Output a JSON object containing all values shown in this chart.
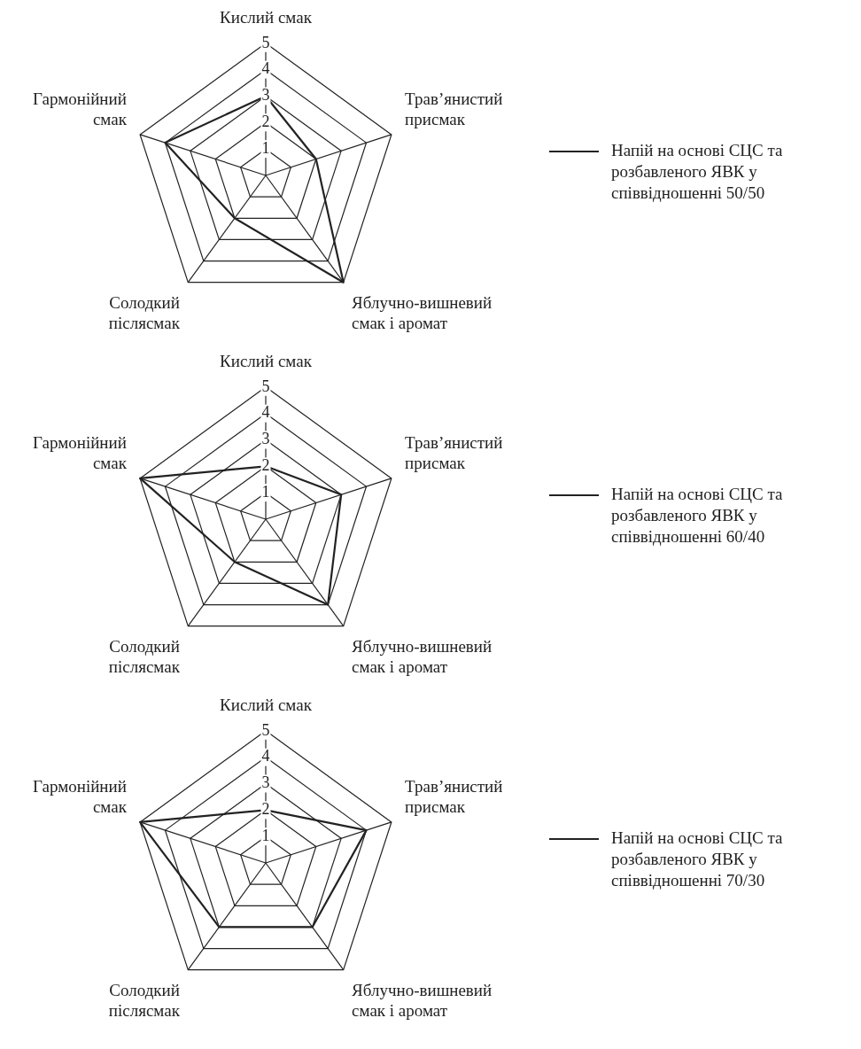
{
  "chart_data": [
    {
      "type": "radar",
      "categories": [
        "Кислий смак",
        "Трав’янистий присмак",
        "Яблучно-вишневий смак і аромат",
        "Солодкий післясмак",
        "Гармонійний смак"
      ],
      "series": [
        {
          "name": "Напій на основі СЦС та розбавленого ЯВК у співвідношенні 50/50",
          "color": "#222222",
          "values": [
            3,
            2,
            5,
            2,
            4
          ]
        }
      ],
      "ylim": [
        0,
        5
      ],
      "yticks": [
        1,
        2,
        3,
        4,
        5
      ],
      "grid": true,
      "legend": "right",
      "marker": "none"
    },
    {
      "type": "radar",
      "categories": [
        "Кислий смак",
        "Трав’янистий присмак",
        "Яблучно-вишневий смак і аромат",
        "Солодкий післясмак",
        "Гармонійний смак"
      ],
      "series": [
        {
          "name": "Напій на основі СЦС та розбавленого ЯВК у співвідношенні 60/40",
          "color": "#222222",
          "values": [
            2,
            3,
            4,
            2,
            5
          ]
        }
      ],
      "ylim": [
        0,
        5
      ],
      "yticks": [
        1,
        2,
        3,
        4,
        5
      ],
      "grid": true,
      "legend": "right",
      "marker": "none"
    },
    {
      "type": "radar",
      "categories": [
        "Кислий смак",
        "Трав’янистий присмак",
        "Яблучно-вишневий смак і аромат",
        "Солодкий післясмак",
        "Гармонійний смак"
      ],
      "series": [
        {
          "name": "Напій на основі СЦС та розбавленого ЯВК у співвідношенні 70/30",
          "color": "#222222",
          "values": [
            2,
            4,
            3,
            3,
            5
          ]
        }
      ],
      "ylim": [
        0,
        5
      ],
      "yticks": [
        1,
        2,
        3,
        4,
        5
      ],
      "grid": true,
      "legend": "right",
      "marker": "none"
    }
  ]
}
